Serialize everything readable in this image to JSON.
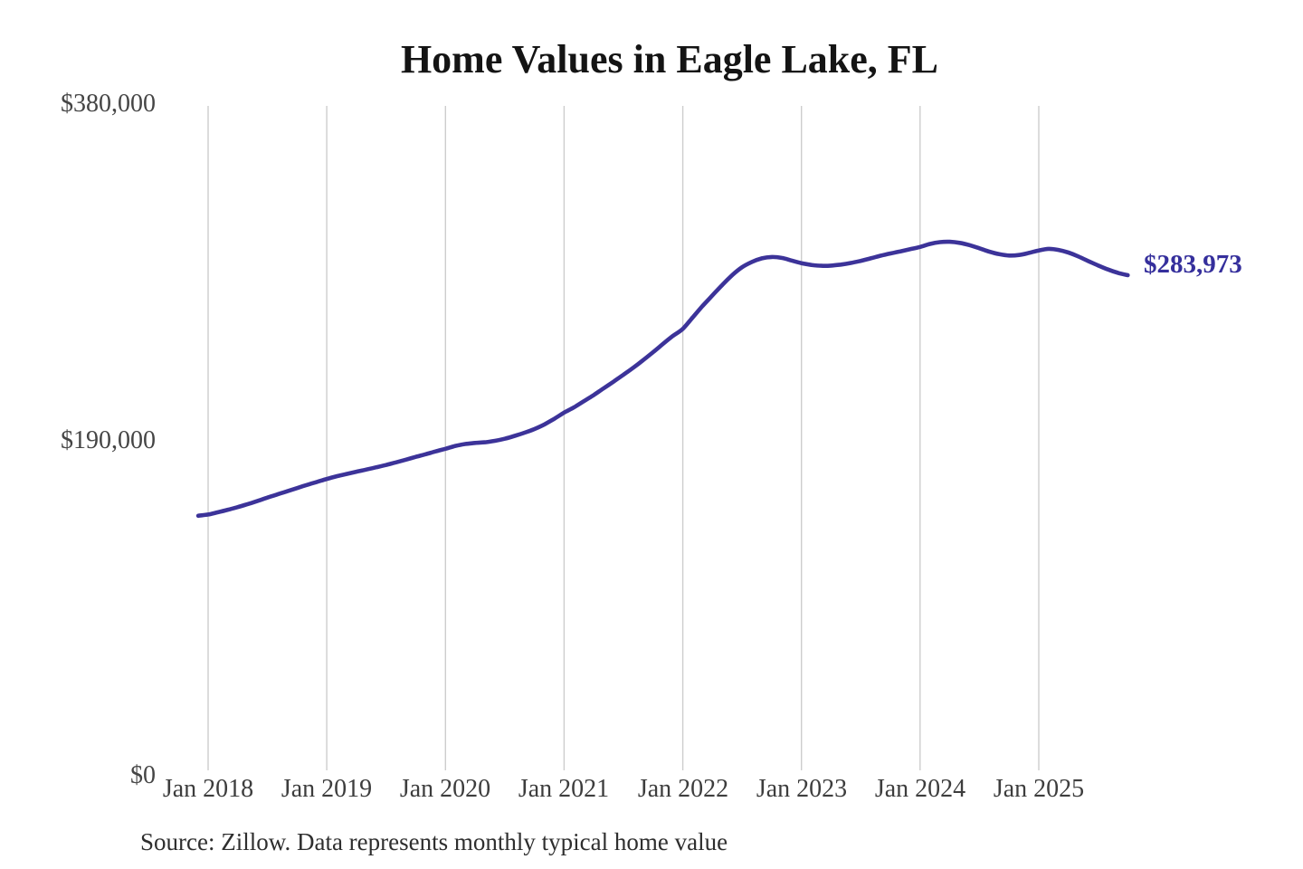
{
  "chart_data": {
    "type": "line",
    "title": "Home Values in Eagle Lake, FL",
    "source_note": "Source: Zillow. Data represents monthly typical home value",
    "series_name": "Monthly typical home value",
    "end_label": "$283,973",
    "latest_value": 283973,
    "legend": "none",
    "grid": "vertical-only",
    "xlabel": "",
    "ylabel": "",
    "ylim": [
      0,
      380000
    ],
    "y_ticks": [
      {
        "value": 0,
        "label": "$0"
      },
      {
        "value": 190000,
        "label": "$190,000"
      },
      {
        "value": 380000,
        "label": "$380,000"
      }
    ],
    "x_tick_labels": [
      "Jan 2018",
      "Jan 2019",
      "Jan 2020",
      "Jan 2021",
      "Jan 2022",
      "Jan 2023",
      "Jan 2024",
      "Jan 2025"
    ],
    "x": [
      "2017-12",
      "2018-01",
      "2018-02",
      "2018-03",
      "2018-04",
      "2018-05",
      "2018-06",
      "2018-07",
      "2018-08",
      "2018-09",
      "2018-10",
      "2018-11",
      "2018-12",
      "2019-01",
      "2019-02",
      "2019-03",
      "2019-04",
      "2019-05",
      "2019-06",
      "2019-07",
      "2019-08",
      "2019-09",
      "2019-10",
      "2019-11",
      "2019-12",
      "2020-01",
      "2020-02",
      "2020-03",
      "2020-04",
      "2020-05",
      "2020-06",
      "2020-07",
      "2020-08",
      "2020-09",
      "2020-10",
      "2020-11",
      "2020-12",
      "2021-01",
      "2021-02",
      "2021-03",
      "2021-04",
      "2021-05",
      "2021-06",
      "2021-07",
      "2021-08",
      "2021-09",
      "2021-10",
      "2021-11",
      "2021-12",
      "2022-01",
      "2022-02",
      "2022-03",
      "2022-04",
      "2022-05",
      "2022-06",
      "2022-07",
      "2022-08",
      "2022-09",
      "2022-10",
      "2022-11",
      "2022-12",
      "2023-01",
      "2023-02",
      "2023-03",
      "2023-04",
      "2023-05",
      "2023-06",
      "2023-07",
      "2023-08",
      "2023-09",
      "2023-10",
      "2023-11",
      "2023-12",
      "2024-01",
      "2024-02",
      "2024-03",
      "2024-04",
      "2024-05",
      "2024-06",
      "2024-07",
      "2024-08",
      "2024-09",
      "2024-10",
      "2024-11",
      "2024-12",
      "2025-01",
      "2025-02",
      "2025-03",
      "2025-04",
      "2025-05",
      "2025-06",
      "2025-07",
      "2025-08",
      "2025-09",
      "2025-10"
    ],
    "values": [
      147500,
      148200,
      149500,
      150900,
      152400,
      154100,
      155900,
      157800,
      159600,
      161400,
      163200,
      165000,
      166700,
      168400,
      169900,
      171200,
      172500,
      173700,
      175000,
      176300,
      177800,
      179300,
      180900,
      182400,
      184000,
      185500,
      187100,
      188200,
      188800,
      189200,
      190000,
      191200,
      192800,
      194600,
      196700,
      199300,
      202500,
      206000,
      209000,
      212500,
      216000,
      219800,
      223600,
      227500,
      231500,
      235800,
      240300,
      245000,
      249500,
      253500,
      260000,
      266500,
      272500,
      278500,
      284000,
      288500,
      291500,
      293500,
      294300,
      293800,
      292300,
      290800,
      289800,
      289300,
      289400,
      290000,
      290900,
      292100,
      293500,
      295000,
      296300,
      297500,
      298700,
      300000,
      301700,
      302700,
      302900,
      302300,
      301000,
      299200,
      297300,
      295900,
      295100,
      295400,
      296600,
      298000,
      298900,
      298300,
      296800,
      294600,
      292000,
      289500,
      287200,
      285300,
      283973
    ],
    "colors": {
      "line": "#3c3399",
      "end_label": "#352f9c",
      "grid": "#cdcdcd",
      "title": "#141414",
      "tick": "#454545",
      "source": "#2e2e2e"
    }
  }
}
